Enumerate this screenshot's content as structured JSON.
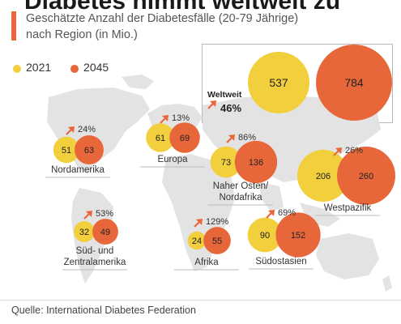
{
  "header": {
    "title": "Diabetes nimmt weltweit zu",
    "subtitle_line1": "Geschätzte Anzahl der Diabetesfälle (20-79 Jährige)",
    "subtitle_line2": "nach Region (in Mio.)"
  },
  "legend": {
    "y2021": "2021",
    "y2045": "2045"
  },
  "colors": {
    "v2021": "#f2cf3d",
    "v2045": "#e8673a",
    "arrow": "#e8673a",
    "map": "#e3e3e3"
  },
  "source": "Quelle: International Diabetes Federation",
  "chart_data": {
    "type": "bubble",
    "unit": "Mio.",
    "series": [
      {
        "name": "2021"
      },
      {
        "name": "2045"
      }
    ],
    "world": {
      "name": "Weltweit",
      "v2021": 537,
      "v2045": 784,
      "growth": "46%"
    },
    "regions": [
      {
        "name": "Nordamerika",
        "v2021": 51,
        "v2045": 63,
        "growth": "24%"
      },
      {
        "name": "Europa",
        "v2021": 61,
        "v2045": 69,
        "growth": "13%"
      },
      {
        "name": "Naher Osten/\nNordafrika",
        "v2021": 73,
        "v2045": 136,
        "growth": "86%"
      },
      {
        "name": "Westpazifik",
        "v2021": 206,
        "v2045": 260,
        "growth": "26%"
      },
      {
        "name": "Süd- und\nZentralamerika",
        "v2021": 32,
        "v2045": 49,
        "growth": "53%"
      },
      {
        "name": "Afrika",
        "v2021": 24,
        "v2045": 55,
        "growth": "129%"
      },
      {
        "name": "Südostasien",
        "v2021": 90,
        "v2045": 152,
        "growth": "69%"
      }
    ]
  }
}
